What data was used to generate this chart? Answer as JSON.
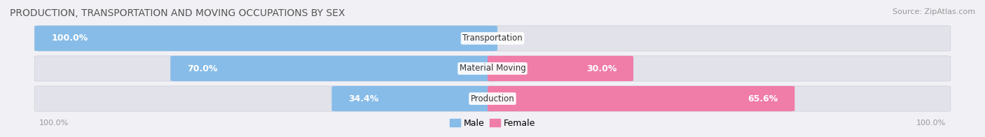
{
  "title": "PRODUCTION, TRANSPORTATION AND MOVING OCCUPATIONS BY SEX",
  "source": "Source: ZipAtlas.com",
  "categories": [
    "Transportation",
    "Material Moving",
    "Production"
  ],
  "male_values": [
    100.0,
    70.0,
    34.4
  ],
  "female_values": [
    0.0,
    30.0,
    65.6
  ],
  "male_color": "#87bce8",
  "female_color": "#f07ca8",
  "bar_bg_color": "#e2e2ea",
  "background_color": "#f0f0f5",
  "title_fontsize": 10,
  "source_fontsize": 8,
  "label_fontsize": 9,
  "category_fontsize": 8.5,
  "legend_fontsize": 9,
  "axis_label_fontsize": 8
}
